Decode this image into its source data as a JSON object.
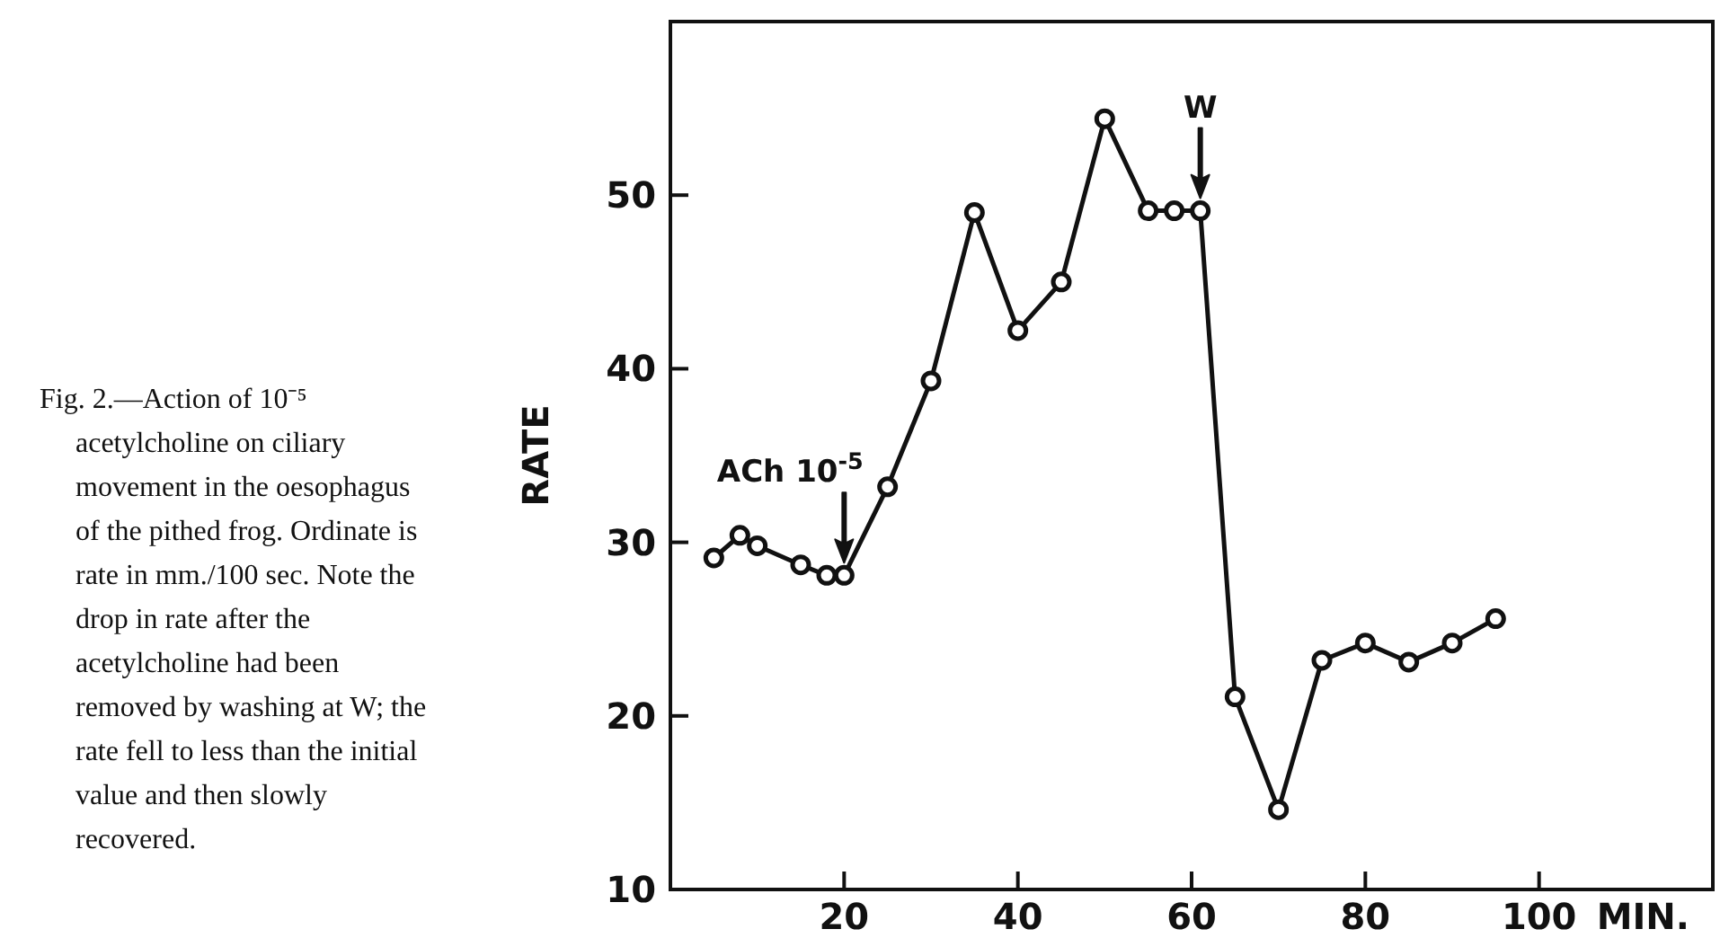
{
  "chart_data": {
    "type": "line",
    "ylabel": "RATE",
    "xlabel": "MIN.",
    "x": [
      5,
      8,
      10,
      15,
      18,
      20,
      25,
      30,
      35,
      40,
      45,
      50,
      55,
      58,
      61,
      65,
      70,
      75,
      80,
      85,
      90,
      95
    ],
    "series": [
      {
        "color": "#111111",
        "values": [
          29.1,
          30.4,
          29.8,
          28.7,
          28.1,
          28.1,
          33.2,
          39.3,
          49,
          42.2,
          45,
          54.4,
          49.1,
          49.1,
          49.1,
          21.1,
          14.6,
          23.2,
          24.2,
          23.1,
          24.2,
          25.6
        ]
      }
    ],
    "xlim": [
      0,
      120
    ],
    "xticks": [
      20,
      40,
      60,
      80,
      100
    ],
    "ylim": [
      10,
      60
    ],
    "yticks": [
      10,
      20,
      30,
      40,
      50
    ],
    "marker": "circle",
    "line_style": "solid",
    "grid": false,
    "annotations": [
      {
        "text": "ACh 10$^{-5}$",
        "x": 20,
        "y": 28.1
      },
      {
        "text": "W",
        "x": 61,
        "y": 49.1
      },
      "Fig. 2.—Action of 10⁻⁵ acetylcholine on ciliary movement in the oesophagus of the pithed frog. Ordinate is rate in mm./100 sec. Note the drop in rate after the acetylcholine had been removed by washing at W; the rate fell to less than the initial value and then slowly recovered."
    ]
  }
}
